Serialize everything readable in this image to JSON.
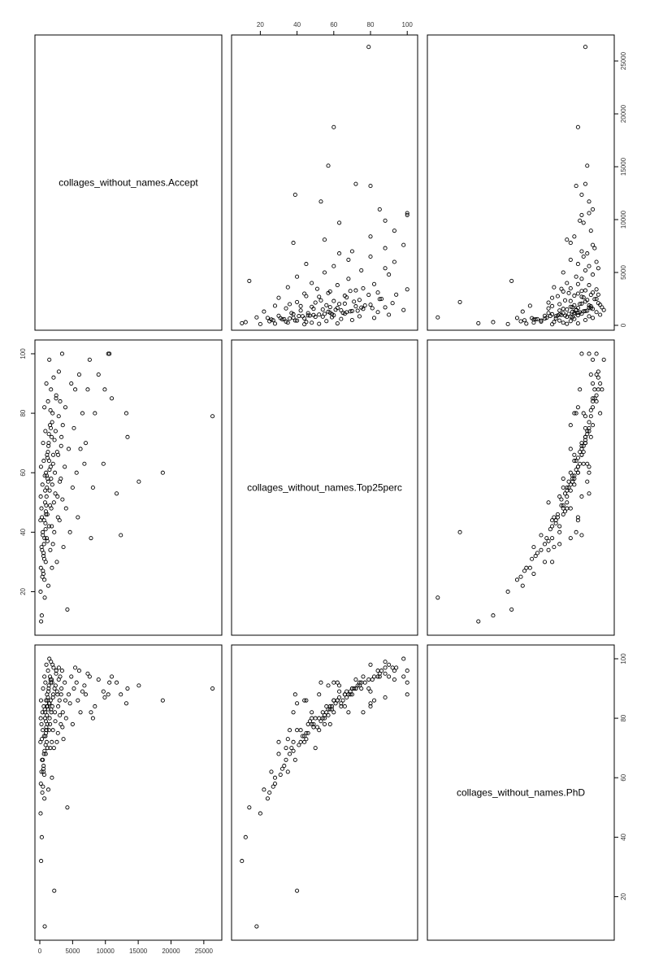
{
  "chart_data": {
    "type": "scatter",
    "layout": "scatterplot-matrix",
    "marker": "open-circle",
    "point_color": "#000000",
    "variables": [
      {
        "key": "accept",
        "label": "collages_without_names.Accept",
        "range": [
          0,
          27000
        ],
        "ticks": [
          0,
          5000,
          10000,
          15000,
          20000,
          25000
        ],
        "tick_labels": [
          "0",
          "5000",
          "10000",
          "15000",
          "20000",
          "25000"
        ]
      },
      {
        "key": "top25",
        "label": "collages_without_names.Top25perc",
        "range": [
          7,
          103
        ],
        "ticks": [
          20,
          40,
          60,
          80,
          100
        ],
        "tick_labels": [
          "20",
          "40",
          "60",
          "80",
          "100"
        ]
      },
      {
        "key": "phd",
        "label": "collages_without_names.PhD",
        "range": [
          7,
          103
        ],
        "ticks": [
          20,
          40,
          60,
          80,
          100
        ],
        "tick_labels": [
          "20",
          "40",
          "60",
          "80",
          "100"
        ]
      }
    ],
    "axes": {
      "top": [
        1
      ],
      "right": [
        2,
        1
      ],
      "left": [
        1
      ],
      "bottom": [
        0
      ]
    },
    "grid": false,
    "legend": "none",
    "points": [
      [
        26330,
        79,
        90
      ],
      [
        18744,
        60,
        86
      ],
      [
        15096,
        57,
        91
      ],
      [
        13371,
        72,
        90
      ],
      [
        13187,
        80,
        85
      ],
      [
        12349,
        39,
        88
      ],
      [
        11711,
        53,
        92
      ],
      [
        10968,
        85,
        94
      ],
      [
        10610,
        100,
        92
      ],
      [
        10431,
        100,
        88
      ],
      [
        9900,
        88,
        87
      ],
      [
        9700,
        63,
        89
      ],
      [
        8950,
        93,
        93
      ],
      [
        8400,
        80,
        84
      ],
      [
        8100,
        55,
        80
      ],
      [
        7800,
        38,
        82
      ],
      [
        7600,
        98,
        94
      ],
      [
        7300,
        88,
        95
      ],
      [
        7000,
        70,
        88
      ],
      [
        6800,
        63,
        91
      ],
      [
        6500,
        80,
        89
      ],
      [
        6200,
        68,
        82
      ],
      [
        6000,
        93,
        96
      ],
      [
        5800,
        45,
        86
      ],
      [
        5600,
        60,
        92
      ],
      [
        5400,
        88,
        97
      ],
      [
        5200,
        75,
        90
      ],
      [
        5000,
        55,
        78
      ],
      [
        4800,
        90,
        94
      ],
      [
        4600,
        40,
        85
      ],
      [
        4400,
        68,
        88
      ],
      [
        4200,
        14,
        50
      ],
      [
        4000,
        48,
        80
      ],
      [
        3900,
        82,
        86
      ],
      [
        3800,
        62,
        92
      ],
      [
        3600,
        35,
        73
      ],
      [
        3500,
        76,
        82
      ],
      [
        3400,
        100,
        96
      ],
      [
        3300,
        72,
        90
      ],
      [
        3200,
        58,
        78
      ],
      [
        3100,
        84,
        94
      ],
      [
        3000,
        44,
        86
      ],
      [
        2900,
        94,
        97
      ],
      [
        2800,
        66,
        84
      ],
      [
        2700,
        52,
        88
      ],
      [
        2600,
        30,
        72
      ],
      [
        2500,
        86,
        96
      ],
      [
        2400,
        74,
        91
      ],
      [
        2300,
        60,
        82
      ],
      [
        2200,
        40,
        22
      ],
      [
        2150,
        50,
        70
      ],
      [
        2100,
        92,
        97
      ],
      [
        2050,
        66,
        88
      ],
      [
        2000,
        36,
        76
      ],
      [
        1950,
        80,
        98
      ],
      [
        1900,
        56,
        84
      ],
      [
        1850,
        28,
        60
      ],
      [
        1800,
        72,
        93
      ],
      [
        1750,
        48,
        82
      ],
      [
        1700,
        88,
        99
      ],
      [
        1650,
        62,
        86
      ],
      [
        1600,
        34,
        70
      ],
      [
        1550,
        76,
        94
      ],
      [
        1500,
        54,
        80
      ],
      [
        1450,
        98,
        100
      ],
      [
        1400,
        42,
        76
      ],
      [
        1350,
        70,
        90
      ],
      [
        1300,
        22,
        56
      ],
      [
        1250,
        84,
        96
      ],
      [
        1200,
        58,
        84
      ],
      [
        1150,
        46,
        78
      ],
      [
        1100,
        66,
        88
      ],
      [
        1050,
        38,
        72
      ],
      [
        1000,
        90,
        98
      ],
      [
        950,
        60,
        86
      ],
      [
        900,
        30,
        68
      ],
      [
        850,
        74,
        92
      ],
      [
        800,
        50,
        80
      ],
      [
        750,
        18,
        10
      ],
      [
        700,
        82,
        94
      ],
      [
        650,
        44,
        74
      ],
      [
        600,
        64,
        84
      ],
      [
        550,
        26,
        62
      ],
      [
        500,
        70,
        90
      ],
      [
        450,
        40,
        76
      ],
      [
        400,
        56,
        82
      ],
      [
        350,
        34,
        66
      ],
      [
        300,
        12,
        40
      ],
      [
        250,
        48,
        78
      ],
      [
        200,
        10,
        32
      ],
      [
        180,
        62,
        86
      ],
      [
        160,
        28,
        58
      ],
      [
        140,
        52,
        80
      ],
      [
        120,
        20,
        48
      ],
      [
        100,
        44,
        72
      ],
      [
        1180,
        65,
        86
      ],
      [
        1020,
        52,
        76
      ],
      [
        880,
        41,
        71
      ],
      [
        760,
        59,
        83
      ],
      [
        640,
        36,
        68
      ],
      [
        920,
        47,
        79
      ],
      [
        1320,
        69,
        89
      ],
      [
        1480,
        61,
        85
      ],
      [
        580,
        33,
        64
      ],
      [
        480,
        27,
        57
      ],
      [
        1080,
        55,
        81
      ],
      [
        980,
        49,
        77
      ],
      [
        860,
        43,
        74
      ],
      [
        720,
        38,
        69
      ],
      [
        680,
        31,
        61
      ],
      [
        1240,
        67,
        87
      ],
      [
        1380,
        73,
        91
      ],
      [
        1620,
        81,
        93
      ],
      [
        1720,
        58,
        83
      ],
      [
        1880,
        77,
        92
      ],
      [
        2020,
        63,
        87
      ],
      [
        2240,
        71,
        90
      ],
      [
        2360,
        53,
        79
      ],
      [
        2480,
        85,
        95
      ],
      [
        2640,
        67,
        89
      ],
      [
        2760,
        45,
        75
      ],
      [
        2880,
        79,
        93
      ],
      [
        3050,
        57,
        81
      ],
      [
        3250,
        69,
        88
      ],
      [
        3450,
        51,
        77
      ],
      [
        1160,
        37,
        70
      ],
      [
        1060,
        59,
        84
      ],
      [
        940,
        46,
        75
      ],
      [
        820,
        54,
        82
      ],
      [
        700,
        24,
        53
      ],
      [
        560,
        32,
        63
      ],
      [
        460,
        39,
        66
      ],
      [
        380,
        25,
        55
      ],
      [
        320,
        45,
        73
      ],
      [
        260,
        35,
        62
      ],
      [
        1280,
        57,
        83
      ],
      [
        1420,
        64,
        85
      ],
      [
        1560,
        49,
        78
      ],
      [
        1680,
        75,
        92
      ],
      [
        1820,
        42,
        72
      ]
    ],
    "xy_points": [
      [
        52,
        5
      ],
      [
        23,
        30
      ],
      [
        33,
        45
      ],
      [
        45,
        60
      ],
      [
        60,
        55
      ],
      [
        70,
        80
      ],
      [
        88,
        95
      ],
      [
        40,
        65
      ],
      [
        48,
        70
      ],
      [
        55,
        62
      ],
      [
        65,
        85
      ],
      [
        75,
        90
      ],
      [
        85,
        88
      ],
      [
        95,
        97
      ],
      [
        30,
        50
      ],
      [
        35,
        40
      ],
      [
        42,
        55
      ],
      [
        58,
        75
      ],
      [
        68,
        78
      ],
      [
        78,
        84
      ],
      [
        90,
        92
      ],
      [
        28,
        42
      ],
      [
        38,
        58
      ],
      [
        50,
        68
      ],
      [
        62,
        72
      ],
      [
        72,
        82
      ],
      [
        82,
        90
      ],
      [
        92,
        96
      ],
      [
        25,
        35
      ],
      [
        44,
        50
      ],
      [
        66,
        66
      ],
      [
        80,
        76
      ]
    ]
  }
}
